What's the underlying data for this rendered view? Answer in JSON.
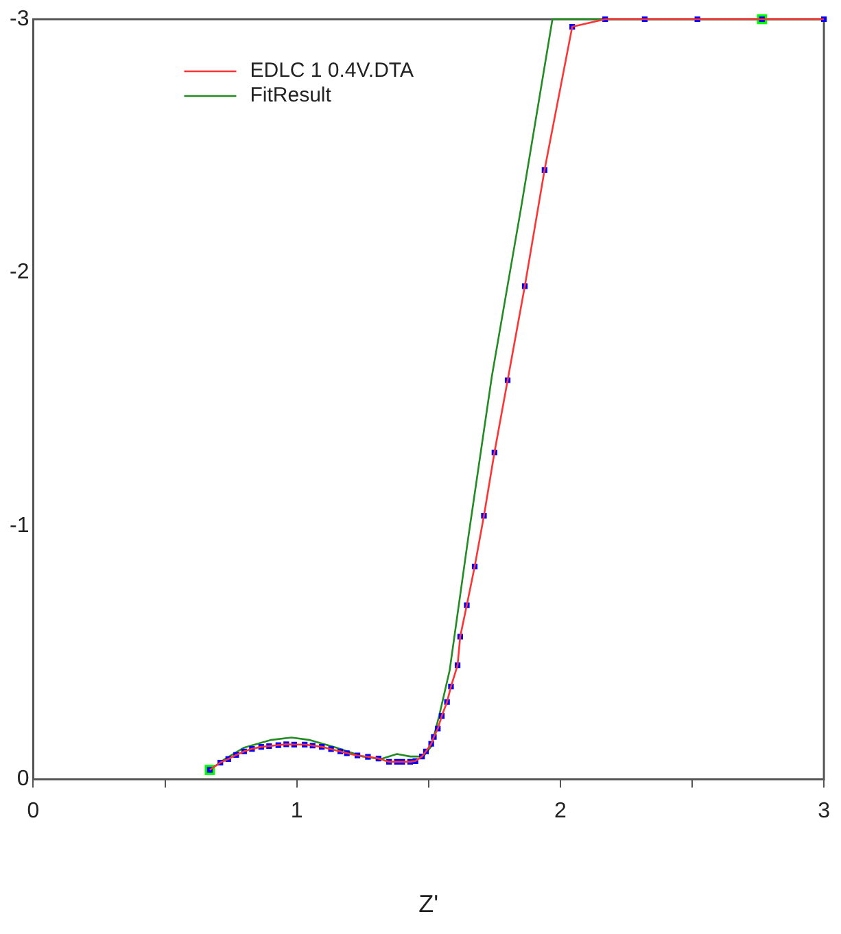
{
  "chart_data": {
    "type": "line",
    "xlabel": "Z'",
    "xlim": [
      0,
      3
    ],
    "ylim": [
      0,
      -3
    ],
    "xticks": [
      0,
      {
        "value": 0.5,
        "label": null
      },
      1,
      {
        "value": 1.5,
        "label": null
      },
      2,
      {
        "value": 2.5,
        "label": null
      },
      3
    ],
    "yticks": [
      0,
      -1,
      -2,
      -3
    ],
    "grid": false,
    "legend": "top left",
    "series": [
      {
        "name": "EDLC 1 0.4V.DTA",
        "color": "#ff3333",
        "marker": "none",
        "x": [
          0.67,
          0.71,
          0.74,
          0.77,
          0.8,
          0.83,
          0.865,
          0.895,
          0.93,
          0.96,
          0.99,
          1.03,
          1.06,
          1.095,
          1.13,
          1.165,
          1.19,
          1.23,
          1.27,
          1.31,
          1.35,
          1.38,
          1.4,
          1.43,
          1.45,
          1.475,
          1.49,
          1.51,
          1.52,
          1.535,
          1.55,
          1.57,
          1.585,
          1.61,
          1.62,
          1.645,
          1.675,
          1.71,
          1.75,
          1.8,
          1.865,
          1.94,
          2.045,
          2.17,
          2.32,
          2.52,
          2.765,
          3.0
        ],
        "values": [
          -0.037,
          -0.066,
          -0.08,
          -0.096,
          -0.11,
          -0.12,
          -0.128,
          -0.131,
          -0.135,
          -0.138,
          -0.137,
          -0.137,
          -0.133,
          -0.128,
          -0.119,
          -0.11,
          -0.103,
          -0.094,
          -0.089,
          -0.082,
          -0.069,
          -0.069,
          -0.069,
          -0.069,
          -0.072,
          -0.09,
          -0.11,
          -0.14,
          -0.167,
          -0.2,
          -0.25,
          -0.305,
          -0.366,
          -0.45,
          -0.563,
          -0.687,
          -0.84,
          -1.04,
          -1.29,
          -1.575,
          -1.946,
          -2.405,
          -2.97,
          -3,
          -3,
          -3,
          -3,
          -3
        ]
      },
      {
        "type": "scatter",
        "color": "#0000ff",
        "marker": "square",
        "x": [
          0.67,
          0.71,
          0.74,
          0.77,
          0.8,
          0.83,
          0.865,
          0.895,
          0.93,
          0.96,
          0.99,
          1.03,
          1.06,
          1.095,
          1.13,
          1.165,
          1.19,
          1.23,
          1.27,
          1.31,
          1.35,
          1.38,
          1.4,
          1.43,
          1.45,
          1.475,
          1.49,
          1.51,
          1.52,
          1.535,
          1.55,
          1.57,
          1.585,
          1.61,
          1.62,
          1.645,
          1.675,
          1.71,
          1.75,
          1.8,
          1.865,
          1.94,
          2.045,
          2.17,
          2.32,
          2.52,
          2.765,
          3.0
        ],
        "values": [
          -0.037,
          -0.066,
          -0.08,
          -0.096,
          -0.11,
          -0.12,
          -0.128,
          -0.131,
          -0.135,
          -0.138,
          -0.137,
          -0.137,
          -0.133,
          -0.128,
          -0.119,
          -0.11,
          -0.103,
          -0.094,
          -0.089,
          -0.082,
          -0.069,
          -0.069,
          -0.069,
          -0.069,
          -0.072,
          -0.09,
          -0.11,
          -0.14,
          -0.167,
          -0.2,
          -0.25,
          -0.305,
          -0.366,
          -0.45,
          -0.563,
          -0.687,
          -0.84,
          -1.04,
          -1.29,
          -1.575,
          -1.946,
          -2.405,
          -2.97,
          -3,
          -3,
          -3,
          -3,
          -3
        ]
      },
      {
        "name": "FitResult",
        "color": "#228b22",
        "marker": "none",
        "x": [
          0.67,
          0.72,
          0.8,
          0.9,
          0.98,
          1.05,
          1.15,
          1.25,
          1.32,
          1.38,
          1.43,
          1.48,
          1.51,
          1.54,
          1.58,
          1.65,
          1.74,
          1.85,
          1.97,
          3.0
        ],
        "values": [
          -0.037,
          -0.075,
          -0.125,
          -0.155,
          -0.165,
          -0.155,
          -0.125,
          -0.09,
          -0.08,
          -0.1,
          -0.09,
          -0.09,
          -0.13,
          -0.25,
          -0.43,
          -0.95,
          -1.59,
          -2.25,
          -3,
          -3
        ]
      },
      {
        "type": "scatter",
        "color": "#00ff00",
        "marker": "square",
        "x": [
          0.67,
          2.765
        ],
        "values": [
          -0.037,
          -3
        ]
      }
    ]
  }
}
